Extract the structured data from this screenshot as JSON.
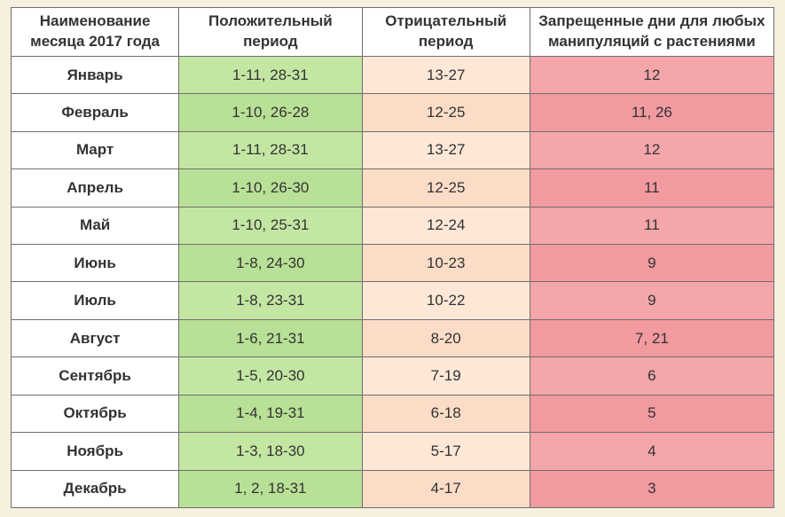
{
  "table": {
    "type": "table",
    "columns": [
      "Наименование месяца 2017 года",
      "Положительный период",
      "Отрицательный период",
      "Запрещенные дни для любых манипуляций с растениями"
    ],
    "column_widths_pct": [
      22,
      24,
      22,
      32
    ],
    "header_bg": "#ffffff",
    "header_font_weight": "bold",
    "header_fontsize_pt": 13,
    "cell_fontsize_pt": 13,
    "border_color": "#6f6f6f",
    "page_bg": "#f6f0de",
    "month_col_bg": "#ffffff",
    "month_font_weight": "bold",
    "colors": {
      "positive_bg": "#c3e6a3",
      "positive_bg_alt": "#b8e096",
      "negative_bg": "#fde7d6",
      "negative_bg_alt": "#fbdcc6",
      "forbidden_bg": "#f4a6aa",
      "forbidden_bg_alt": "#f19aa0",
      "text": "#333333"
    },
    "rows": [
      {
        "month": "Январь",
        "positive": "1-11, 28-31",
        "negative": "13-27",
        "forbidden": "12"
      },
      {
        "month": "Февраль",
        "positive": "1-10, 26-28",
        "negative": "12-25",
        "forbidden": "11, 26"
      },
      {
        "month": "Март",
        "positive": "1-11, 28-31",
        "negative": "13-27",
        "forbidden": "12"
      },
      {
        "month": "Апрель",
        "positive": "1-10, 26-30",
        "negative": "12-25",
        "forbidden": "11"
      },
      {
        "month": "Май",
        "positive": "1-10, 25-31",
        "negative": "12-24",
        "forbidden": "11"
      },
      {
        "month": "Июнь",
        "positive": "1-8, 24-30",
        "negative": "10-23",
        "forbidden": "9"
      },
      {
        "month": "Июль",
        "positive": "1-8, 23-31",
        "negative": "10-22",
        "forbidden": "9"
      },
      {
        "month": "Август",
        "positive": "1-6, 21-31",
        "negative": "8-20",
        "forbidden": "7, 21"
      },
      {
        "month": "Сентябрь",
        "positive": "1-5, 20-30",
        "negative": "7-19",
        "forbidden": "6"
      },
      {
        "month": "Октябрь",
        "positive": "1-4, 19-31",
        "negative": "6-18",
        "forbidden": "5"
      },
      {
        "month": "Ноябрь",
        "positive": "1-3, 18-30",
        "negative": "5-17",
        "forbidden": "4"
      },
      {
        "month": "Декабрь",
        "positive": "1, 2, 18-31",
        "negative": "4-17",
        "forbidden": "3"
      }
    ]
  }
}
